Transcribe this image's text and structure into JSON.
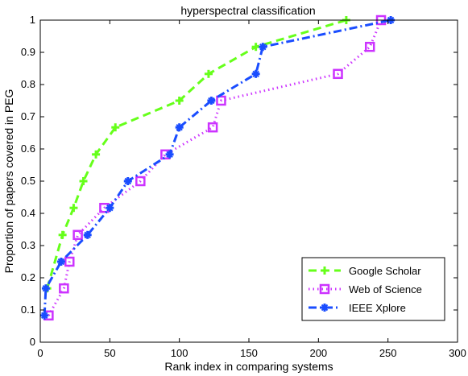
{
  "chart_data": {
    "type": "line",
    "title": "hyperspectral classification",
    "xlabel": "Rank index in comparing systems",
    "ylabel": "Proportion of papers covered in PEG",
    "xlim": [
      0,
      300
    ],
    "ylim": [
      0,
      1
    ],
    "xticks": [
      "0",
      "50",
      "100",
      "150",
      "200",
      "250",
      "300"
    ],
    "yticks": [
      "0",
      "0.1",
      "0.2",
      "0.3",
      "0.4",
      "0.5",
      "0.6",
      "0.7",
      "0.8",
      "0.9",
      "1"
    ],
    "grid": false,
    "legend_position": "bottom-right",
    "series": [
      {
        "name": "Google Scholar",
        "color": "#66ff1a",
        "line_style": "dashed",
        "marker": "plus",
        "x": [
          5,
          16,
          24,
          31,
          40,
          54,
          100,
          121,
          155,
          220
        ],
        "y": [
          0.167,
          0.333,
          0.417,
          0.5,
          0.583,
          0.667,
          0.75,
          0.833,
          0.917,
          1.0
        ]
      },
      {
        "name": "Web of Science",
        "color": "#cc33ff",
        "line_style": "dotted",
        "marker": "square",
        "x": [
          6,
          17,
          21,
          27,
          46,
          72,
          90,
          124,
          130,
          214,
          237,
          245
        ],
        "y": [
          0.083,
          0.167,
          0.25,
          0.333,
          0.417,
          0.5,
          0.583,
          0.667,
          0.75,
          0.833,
          0.917,
          1.0
        ]
      },
      {
        "name": "IEEE Xplore",
        "color": "#1a4dff",
        "line_style": "dashdot",
        "marker": "star",
        "x": [
          3,
          4,
          15,
          34,
          50,
          63,
          93,
          100,
          123,
          155,
          160,
          252
        ],
        "y": [
          0.083,
          0.167,
          0.25,
          0.333,
          0.417,
          0.5,
          0.583,
          0.667,
          0.75,
          0.833,
          0.917,
          1.0
        ]
      }
    ]
  }
}
